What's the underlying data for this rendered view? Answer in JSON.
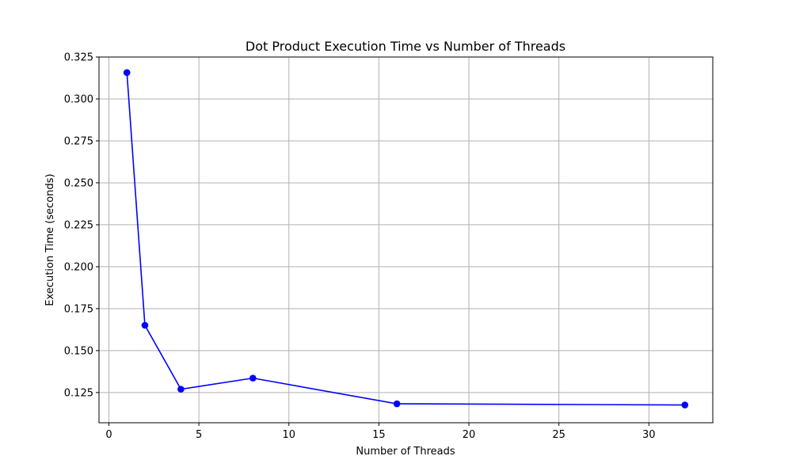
{
  "chart_data": {
    "type": "line",
    "title": "Dot Product Execution Time vs Number of Threads",
    "xlabel": "Number of Threads",
    "ylabel": "Execution Time (seconds)",
    "xlim": [
      -0.55,
      33.55
    ],
    "ylim": [
      0.107,
      0.325
    ],
    "xticks": [
      0,
      5,
      10,
      15,
      20,
      25,
      30
    ],
    "yticks": [
      0.125,
      0.15,
      0.175,
      0.2,
      0.225,
      0.25,
      0.275,
      0.3,
      0.325
    ],
    "ytick_labels": [
      "0.125",
      "0.150",
      "0.175",
      "0.200",
      "0.225",
      "0.250",
      "0.275",
      "0.300",
      "0.325"
    ],
    "grid": true,
    "series": [
      {
        "color": "#0000ff",
        "marker": "circle",
        "x": [
          1,
          2,
          4,
          8,
          16,
          32
        ],
        "y": [
          0.3157,
          0.1651,
          0.127,
          0.1336,
          0.1183,
          0.1176
        ]
      }
    ]
  }
}
